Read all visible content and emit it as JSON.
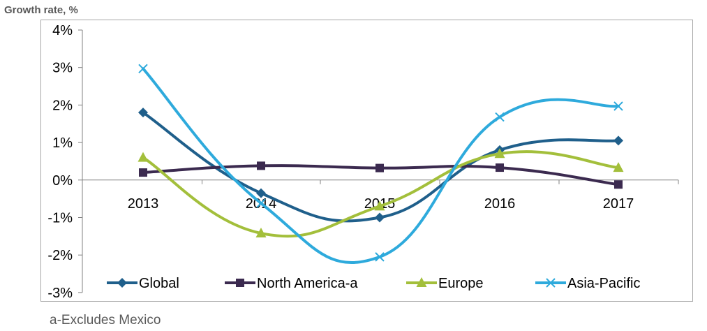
{
  "chart_data": {
    "type": "line",
    "title": "",
    "ylabel": "Growth rate, %",
    "xlabel": "",
    "categories": [
      "2013",
      "2014",
      "2015",
      "2016",
      "2017"
    ],
    "ylim": [
      -3,
      4
    ],
    "yticks": [
      "4%",
      "3%",
      "2%",
      "1%",
      "0%",
      "-1%",
      "-2%",
      "-3%"
    ],
    "ytick_values": [
      4,
      3,
      2,
      1,
      0,
      -1,
      -2,
      -3
    ],
    "series": [
      {
        "name": "Global",
        "values": [
          1.8,
          -0.35,
          -1.0,
          0.8,
          1.05
        ],
        "color": "#1f5f8b",
        "marker": "diamond"
      },
      {
        "name": "North America-a",
        "values": [
          0.2,
          0.38,
          0.32,
          0.33,
          -0.12
        ],
        "color": "#3b2a4f",
        "marker": "square"
      },
      {
        "name": "Europe",
        "values": [
          0.6,
          -1.42,
          -0.7,
          0.7,
          0.33
        ],
        "color": "#a3bf3b",
        "marker": "triangle"
      },
      {
        "name": "Asia-Pacific",
        "values": [
          2.97,
          -0.62,
          -2.05,
          1.68,
          1.97
        ],
        "color": "#2eaadc",
        "marker": "x"
      }
    ],
    "grid": false,
    "legend": "bottom"
  },
  "footnote": "a-Excludes Mexico"
}
